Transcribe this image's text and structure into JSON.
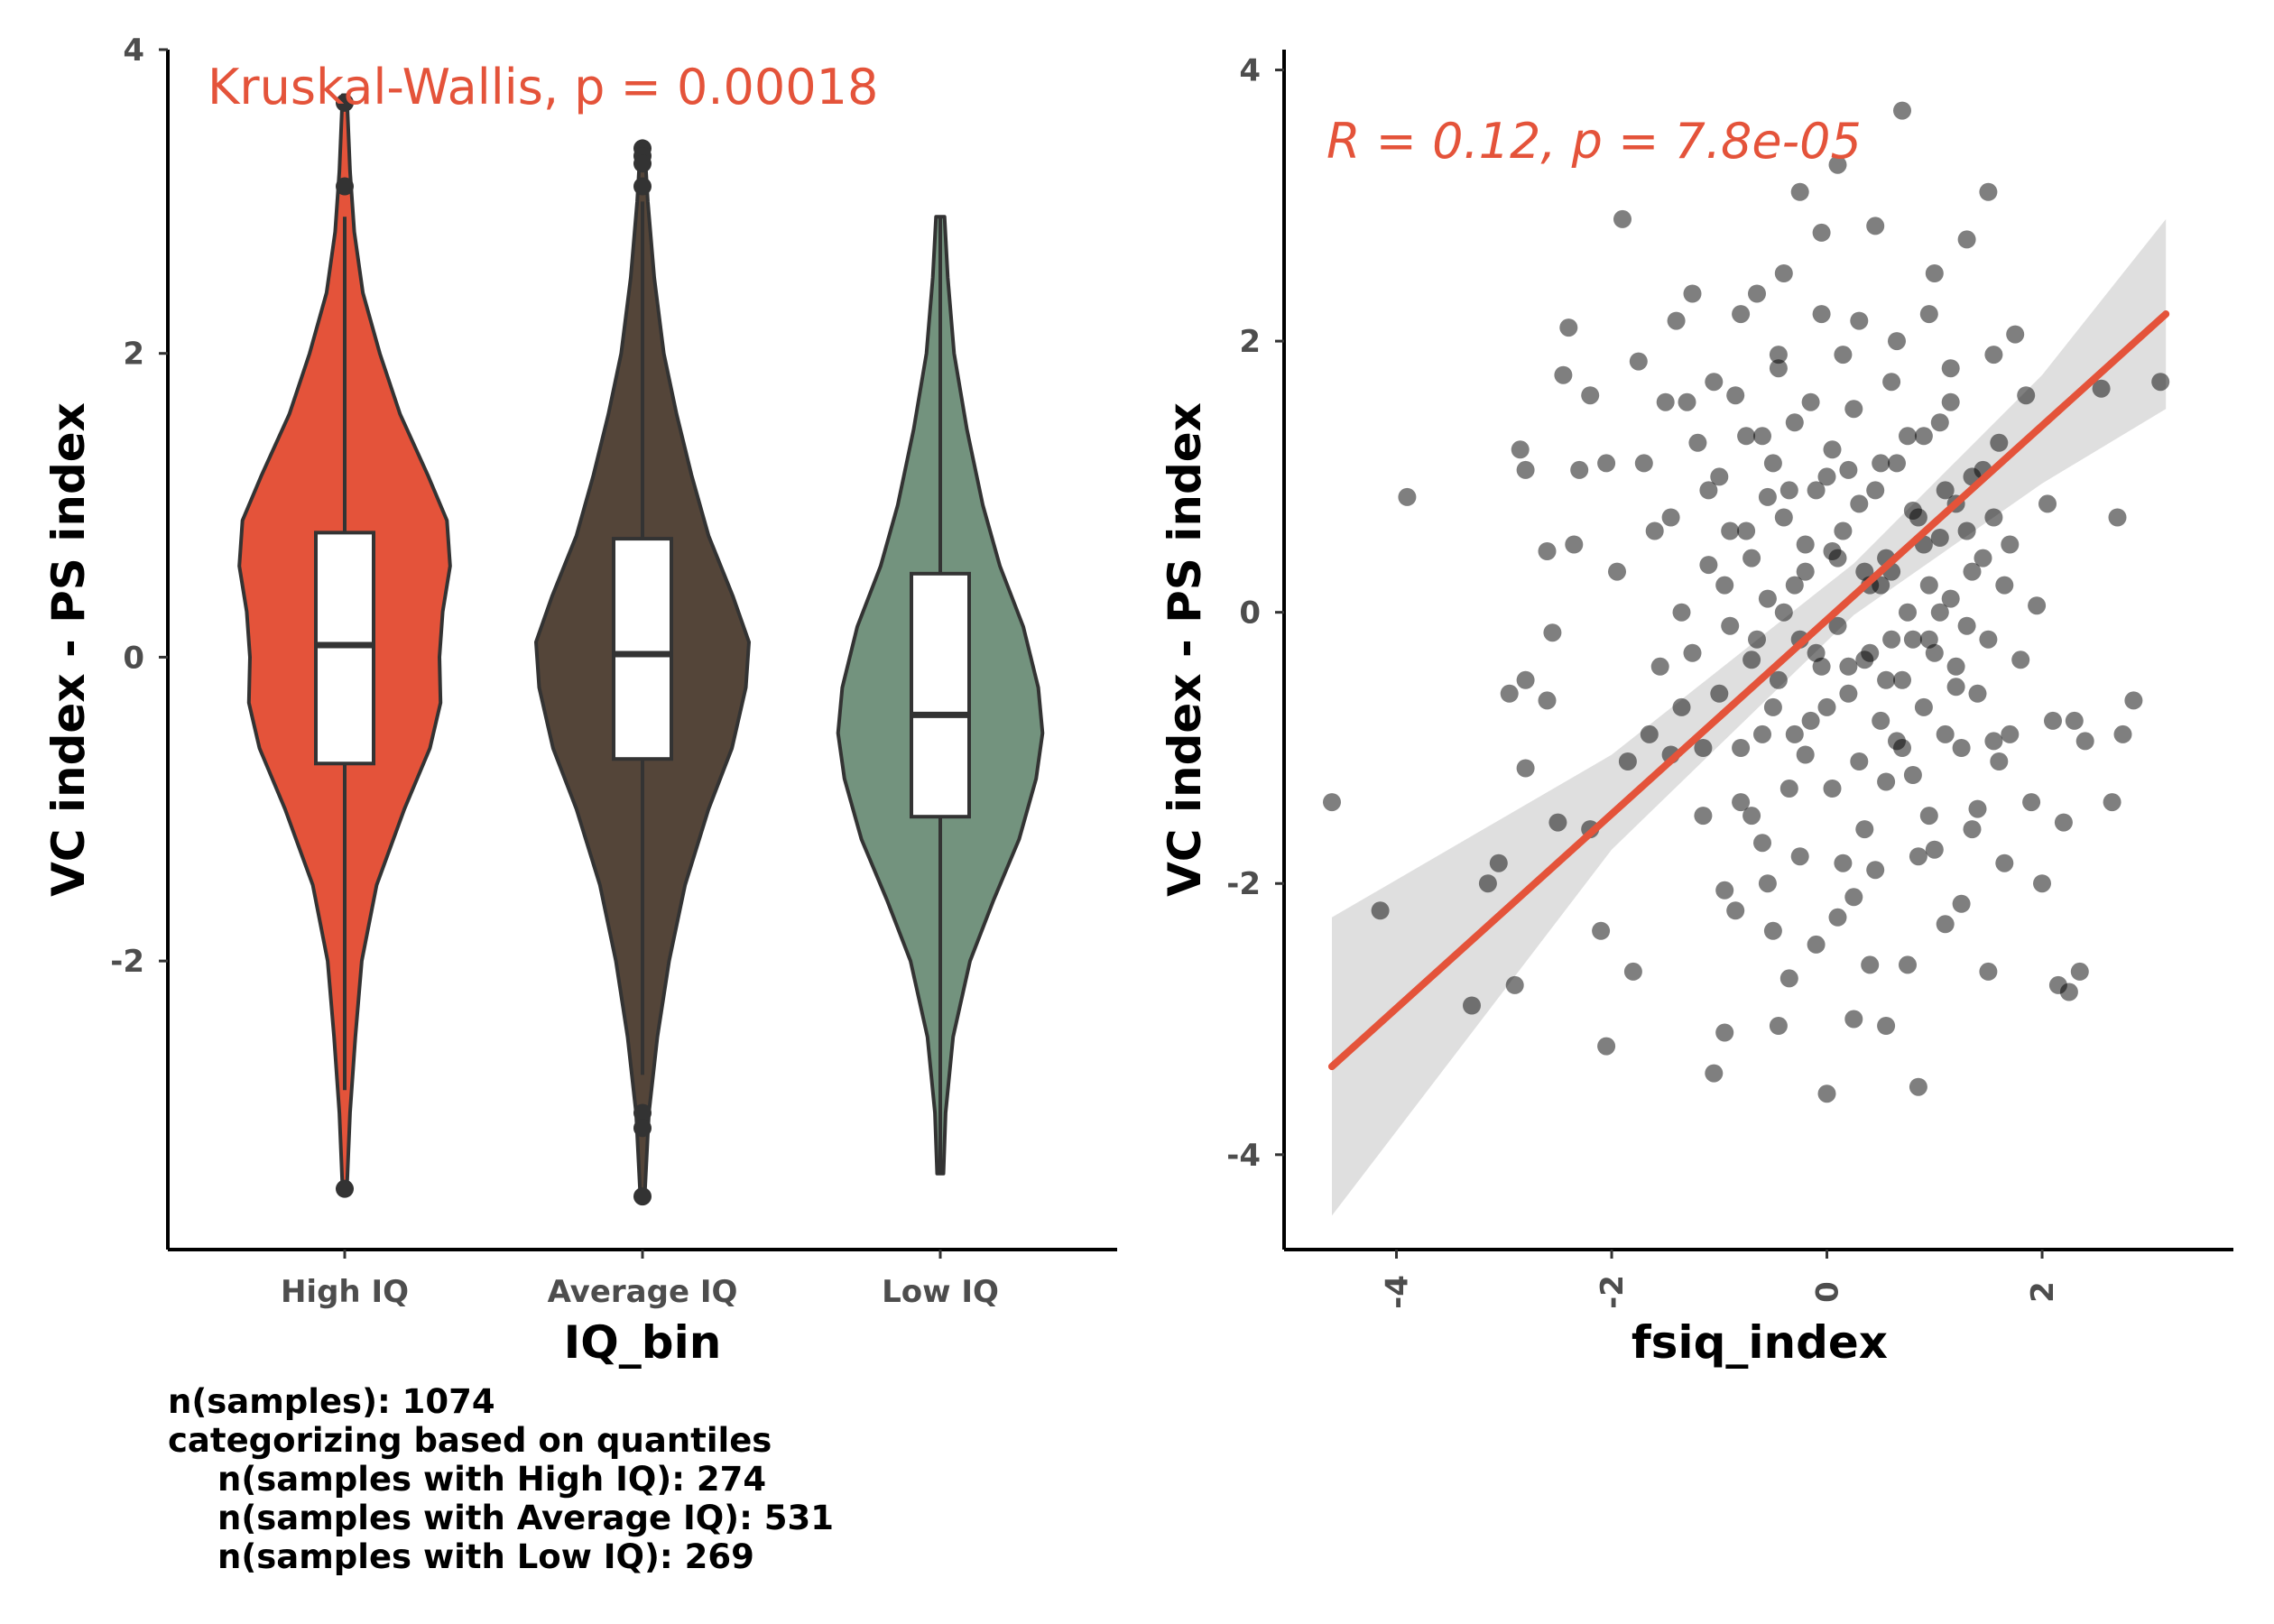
{
  "colors": {
    "accent": "#E4533A",
    "high_iq": "#E4533A",
    "average_iq": "#544539",
    "low_iq": "#73937E",
    "outline": "#333333",
    "ci_band": "#d9d9d9",
    "points": "#000000"
  },
  "chart_data": [
    {
      "type": "violin",
      "annotation": "Kruskal-Wallis, p = 0.00018",
      "xlabel": "IQ_bin",
      "ylabel": "VC index - PS index",
      "categories": [
        "High IQ",
        "Average IQ",
        "Low IQ"
      ],
      "ylim": [
        -3.9,
        4.0
      ],
      "yticks": [
        -2,
        0,
        2,
        4
      ],
      "grid": false,
      "legend": "none",
      "groups": [
        {
          "name": "High IQ",
          "color": "#E4533A",
          "min": -3.5,
          "max": 3.7,
          "box": {
            "q1": -0.7,
            "median": 0.08,
            "q3": 0.82,
            "whisker_low": -2.85,
            "whisker_high": 2.9
          },
          "outliers": [
            3.65,
            3.1,
            -3.5
          ],
          "density": [
            [
              -3.5,
              0.02
            ],
            [
              -3.0,
              0.05
            ],
            [
              -2.5,
              0.1
            ],
            [
              -2.0,
              0.16
            ],
            [
              -1.5,
              0.3
            ],
            [
              -1.0,
              0.56
            ],
            [
              -0.6,
              0.8
            ],
            [
              -0.3,
              0.9
            ],
            [
              0.0,
              0.89
            ],
            [
              0.3,
              0.92
            ],
            [
              0.6,
              0.99
            ],
            [
              0.9,
              0.96
            ],
            [
              1.2,
              0.78
            ],
            [
              1.6,
              0.52
            ],
            [
              2.0,
              0.33
            ],
            [
              2.4,
              0.17
            ],
            [
              2.8,
              0.09
            ],
            [
              3.2,
              0.05
            ],
            [
              3.7,
              0.02
            ]
          ]
        },
        {
          "name": "Average IQ",
          "color": "#544539",
          "min": -3.55,
          "max": 3.35,
          "box": {
            "q1": -0.67,
            "median": 0.02,
            "q3": 0.78,
            "whisker_low": -2.75,
            "whisker_high": 3.0
          },
          "outliers": [
            3.35,
            3.3,
            3.25,
            3.1,
            -3.0,
            -3.1,
            -3.55
          ],
          "density": [
            [
              -3.55,
              0.02
            ],
            [
              -3.0,
              0.06
            ],
            [
              -2.5,
              0.14
            ],
            [
              -2.0,
              0.25
            ],
            [
              -1.5,
              0.4
            ],
            [
              -1.0,
              0.62
            ],
            [
              -0.6,
              0.84
            ],
            [
              -0.2,
              0.97
            ],
            [
              0.1,
              1.0
            ],
            [
              0.4,
              0.85
            ],
            [
              0.8,
              0.62
            ],
            [
              1.2,
              0.46
            ],
            [
              1.6,
              0.32
            ],
            [
              2.0,
              0.2
            ],
            [
              2.5,
              0.11
            ],
            [
              3.0,
              0.05
            ],
            [
              3.35,
              0.02
            ]
          ]
        },
        {
          "name": "Low IQ",
          "color": "#73937E",
          "min": -3.4,
          "max": 2.9,
          "box": {
            "q1": -1.05,
            "median": -0.38,
            "q3": 0.55,
            "whisker_low": -3.4,
            "whisker_high": 2.9
          },
          "outliers": [],
          "density": [
            [
              -3.4,
              0.03
            ],
            [
              -3.0,
              0.05
            ],
            [
              -2.5,
              0.12
            ],
            [
              -2.0,
              0.28
            ],
            [
              -1.6,
              0.5
            ],
            [
              -1.2,
              0.74
            ],
            [
              -0.8,
              0.9
            ],
            [
              -0.5,
              0.96
            ],
            [
              -0.2,
              0.92
            ],
            [
              0.2,
              0.78
            ],
            [
              0.6,
              0.56
            ],
            [
              1.0,
              0.4
            ],
            [
              1.5,
              0.25
            ],
            [
              2.0,
              0.13
            ],
            [
              2.5,
              0.07
            ],
            [
              2.9,
              0.04
            ]
          ]
        }
      ]
    },
    {
      "type": "scatter",
      "annotation_stat": "R = 0.12, p = 7.8e-05",
      "xlabel": "fsiq_index",
      "ylabel": "VC index - PS index",
      "xlim": [
        -4.65,
        3.4
      ],
      "ylim": [
        -4.7,
        4.15
      ],
      "xticks": [
        -4,
        -2,
        0,
        2
      ],
      "yticks": [
        -4,
        -2,
        0,
        2,
        4
      ],
      "grid": false,
      "legend": "none",
      "regression": {
        "x": [
          -4.6,
          3.15
        ],
        "y": [
          -3.35,
          2.2
        ]
      },
      "ci_band": [
        {
          "x": -4.6,
          "lo": -4.45,
          "hi": -2.25
        },
        {
          "x": -2.0,
          "lo": -1.75,
          "hi": -1.05
        },
        {
          "x": 0.25,
          "lo": -0.02,
          "hi": 0.36
        },
        {
          "x": 2.0,
          "lo": 0.95,
          "hi": 1.75
        },
        {
          "x": 3.15,
          "lo": 1.5,
          "hi": 2.9
        }
      ],
      "points": [
        [
          -4.6,
          -1.4
        ],
        [
          -4.15,
          -2.2
        ],
        [
          -3.9,
          0.85
        ],
        [
          -3.3,
          -2.9
        ],
        [
          -3.15,
          -2.0
        ],
        [
          -3.05,
          -1.85
        ],
        [
          -2.95,
          -0.6
        ],
        [
          -2.9,
          -2.75
        ],
        [
          -2.85,
          1.2
        ],
        [
          -2.8,
          1.05
        ],
        [
          -2.8,
          -0.5
        ],
        [
          -2.8,
          -1.15
        ],
        [
          -2.6,
          -0.65
        ],
        [
          -2.6,
          0.45
        ],
        [
          -2.55,
          -0.15
        ],
        [
          -2.5,
          -1.55
        ],
        [
          -2.45,
          1.75
        ],
        [
          -2.4,
          2.1
        ],
        [
          -2.35,
          0.5
        ],
        [
          -2.3,
          1.05
        ],
        [
          -2.2,
          1.6
        ],
        [
          -2.2,
          -1.6
        ],
        [
          -2.1,
          -2.35
        ],
        [
          -2.05,
          -3.2
        ],
        [
          -2.05,
          1.1
        ],
        [
          -1.95,
          0.3
        ],
        [
          -1.9,
          2.9
        ],
        [
          -1.85,
          -1.1
        ],
        [
          -1.8,
          -2.65
        ],
        [
          -1.75,
          1.85
        ],
        [
          -1.7,
          1.1
        ],
        [
          -1.65,
          -0.9
        ],
        [
          -1.6,
          0.6
        ],
        [
          -1.55,
          -0.4
        ],
        [
          -1.5,
          1.55
        ],
        [
          -1.45,
          -1.05
        ],
        [
          -1.4,
          2.15
        ],
        [
          -1.35,
          0.0
        ],
        [
          -1.3,
          1.55
        ],
        [
          -1.25,
          2.35
        ],
        [
          -1.2,
          1.25
        ],
        [
          -1.15,
          -1.5
        ],
        [
          -1.1,
          0.35
        ],
        [
          -1.05,
          -3.4
        ],
        [
          -1.0,
          1.0
        ],
        [
          -0.95,
          -2.05
        ],
        [
          -0.95,
          -3.1
        ],
        [
          -0.9,
          0.6
        ],
        [
          -0.85,
          -2.2
        ],
        [
          -0.8,
          -1.4
        ],
        [
          -0.8,
          2.2
        ],
        [
          -0.75,
          1.3
        ],
        [
          -0.7,
          -0.35
        ],
        [
          -0.65,
          2.35
        ],
        [
          -0.6,
          -1.7
        ],
        [
          -0.55,
          0.85
        ],
        [
          -0.5,
          -2.35
        ],
        [
          -0.45,
          1.9
        ],
        [
          -0.45,
          -3.05
        ],
        [
          -0.4,
          2.5
        ],
        [
          -0.35,
          -2.7
        ],
        [
          -0.3,
          0.2
        ],
        [
          -0.25,
          3.1
        ],
        [
          -0.2,
          -1.05
        ],
        [
          -0.15,
          1.55
        ],
        [
          -0.1,
          -2.45
        ],
        [
          -0.05,
          2.8
        ],
        [
          0.0,
          -0.7
        ],
        [
          0.0,
          -3.55
        ],
        [
          0.05,
          0.45
        ],
        [
          0.1,
          -2.25
        ],
        [
          0.1,
          3.3
        ],
        [
          0.15,
          -1.85
        ],
        [
          0.2,
          1.05
        ],
        [
          0.25,
          -3.0
        ],
        [
          0.3,
          2.15
        ],
        [
          0.35,
          -0.35
        ],
        [
          0.4,
          -2.6
        ],
        [
          0.45,
          2.85
        ],
        [
          0.5,
          0.2
        ],
        [
          0.55,
          -1.25
        ],
        [
          0.55,
          -3.05
        ],
        [
          0.6,
          1.7
        ],
        [
          0.65,
          -0.95
        ],
        [
          0.7,
          3.7
        ],
        [
          0.75,
          -2.6
        ],
        [
          0.8,
          0.75
        ],
        [
          0.85,
          -3.5
        ],
        [
          0.9,
          1.3
        ],
        [
          0.95,
          -0.2
        ],
        [
          1.0,
          2.5
        ],
        [
          1.0,
          -1.75
        ],
        [
          1.05,
          0.55
        ],
        [
          1.1,
          -2.3
        ],
        [
          1.15,
          1.55
        ],
        [
          1.2,
          -0.55
        ],
        [
          1.25,
          -2.15
        ],
        [
          1.3,
          2.75
        ],
        [
          1.35,
          0.3
        ],
        [
          1.4,
          -1.45
        ],
        [
          1.45,
          1.05
        ],
        [
          1.5,
          -2.65
        ],
        [
          1.5,
          3.1
        ],
        [
          1.55,
          -0.95
        ],
        [
          1.6,
          1.25
        ],
        [
          1.65,
          -1.85
        ],
        [
          1.7,
          0.5
        ],
        [
          1.75,
          2.05
        ],
        [
          1.8,
          -0.35
        ],
        [
          1.85,
          1.6
        ],
        [
          1.9,
          -1.4
        ],
        [
          1.95,
          0.05
        ],
        [
          2.0,
          -2.0
        ],
        [
          2.05,
          0.8
        ],
        [
          2.1,
          -0.8
        ],
        [
          2.15,
          -2.75
        ],
        [
          2.2,
          -1.55
        ],
        [
          2.25,
          -2.8
        ],
        [
          2.3,
          -0.8
        ],
        [
          2.35,
          -2.65
        ],
        [
          2.4,
          -0.95
        ],
        [
          2.55,
          1.65
        ],
        [
          2.65,
          -1.4
        ],
        [
          2.7,
          0.7
        ],
        [
          2.75,
          -0.9
        ],
        [
          2.85,
          -0.65
        ],
        [
          3.1,
          1.7
        ],
        [
          -1.1,
          0.9
        ],
        [
          -1.0,
          -0.6
        ],
        [
          -0.9,
          -0.1
        ],
        [
          -0.85,
          1.6
        ],
        [
          -0.7,
          0.4
        ],
        [
          -0.6,
          -0.9
        ],
        [
          -0.55,
          0.1
        ],
        [
          -0.5,
          1.1
        ],
        [
          -0.45,
          -0.5
        ],
        [
          -0.4,
          0.7
        ],
        [
          -0.35,
          -1.3
        ],
        [
          -0.3,
          1.4
        ],
        [
          -0.25,
          -0.2
        ],
        [
          -0.2,
          0.5
        ],
        [
          -0.15,
          -0.8
        ],
        [
          -0.1,
          0.9
        ],
        [
          -0.05,
          -0.4
        ],
        [
          0.05,
          1.2
        ],
        [
          0.1,
          -0.1
        ],
        [
          0.15,
          0.6
        ],
        [
          0.2,
          -0.6
        ],
        [
          0.25,
          1.5
        ],
        [
          0.3,
          -1.1
        ],
        [
          0.35,
          0.3
        ],
        [
          0.4,
          -0.3
        ],
        [
          0.45,
          0.9
        ],
        [
          0.5,
          -0.8
        ],
        [
          0.55,
          0.4
        ],
        [
          0.6,
          -0.2
        ],
        [
          0.65,
          1.1
        ],
        [
          0.7,
          -0.5
        ],
        [
          0.75,
          0.0
        ],
        [
          0.8,
          -1.2
        ],
        [
          0.85,
          0.7
        ],
        [
          0.9,
          -0.7
        ],
        [
          0.95,
          0.2
        ],
        [
          1.0,
          -0.3
        ],
        [
          1.05,
          1.4
        ],
        [
          1.1,
          -0.9
        ],
        [
          1.15,
          0.1
        ],
        [
          1.2,
          0.8
        ],
        [
          1.25,
          -1.0
        ],
        [
          1.3,
          -0.1
        ],
        [
          1.35,
          1.0
        ],
        [
          1.4,
          -0.6
        ],
        [
          1.45,
          0.4
        ],
        [
          1.5,
          -0.2
        ],
        [
          1.55,
          0.7
        ],
        [
          1.6,
          -1.1
        ],
        [
          1.65,
          0.2
        ],
        [
          -0.95,
          0.2
        ],
        [
          -0.8,
          -1.0
        ],
        [
          -0.75,
          0.6
        ],
        [
          -0.65,
          -0.2
        ],
        [
          -0.6,
          1.3
        ],
        [
          -0.5,
          -0.7
        ],
        [
          -0.4,
          0.0
        ],
        [
          -0.35,
          0.9
        ],
        [
          -0.3,
          -0.9
        ],
        [
          -0.2,
          0.3
        ],
        [
          -0.1,
          -0.3
        ],
        [
          0.0,
          1.0
        ],
        [
          0.05,
          -1.3
        ],
        [
          0.1,
          0.4
        ],
        [
          0.2,
          -0.4
        ],
        [
          0.3,
          0.8
        ],
        [
          0.35,
          -1.6
        ],
        [
          0.4,
          0.2
        ],
        [
          0.5,
          1.1
        ],
        [
          0.55,
          -0.5
        ],
        [
          0.6,
          0.3
        ],
        [
          0.7,
          -1.0
        ],
        [
          0.75,
          1.3
        ],
        [
          0.8,
          -0.2
        ],
        [
          0.9,
          0.5
        ],
        [
          0.95,
          -1.5
        ],
        [
          1.05,
          0.0
        ],
        [
          1.1,
          0.9
        ],
        [
          1.2,
          -0.4
        ],
        [
          1.3,
          0.6
        ],
        [
          -1.25,
          -0.3
        ],
        [
          -1.15,
          -1.0
        ],
        [
          -1.05,
          1.7
        ],
        [
          -0.7,
          -1.5
        ],
        [
          -0.45,
          1.8
        ],
        [
          -0.25,
          -1.8
        ],
        [
          0.15,
          1.9
        ],
        [
          0.45,
          -1.9
        ],
        [
          0.65,
          2.0
        ],
        [
          0.85,
          -1.8
        ],
        [
          1.15,
          1.8
        ],
        [
          1.35,
          -1.6
        ],
        [
          -1.45,
          0.7
        ],
        [
          -1.35,
          -0.7
        ],
        [
          1.55,
          1.9
        ],
        [
          1.7,
          -0.9
        ],
        [
          -0.05,
          2.2
        ],
        [
          0.25,
          -2.1
        ],
        [
          -0.55,
          -2.0
        ],
        [
          0.95,
          2.2
        ]
      ]
    }
  ],
  "caption": {
    "line1": "n(samples): 1074",
    "line2": "categorizing based on quantiles",
    "line3": "n(samples with High IQ): 274",
    "line4": "n(samples with Average IQ): 531",
    "line5": "n(samples with Low IQ): 269"
  }
}
